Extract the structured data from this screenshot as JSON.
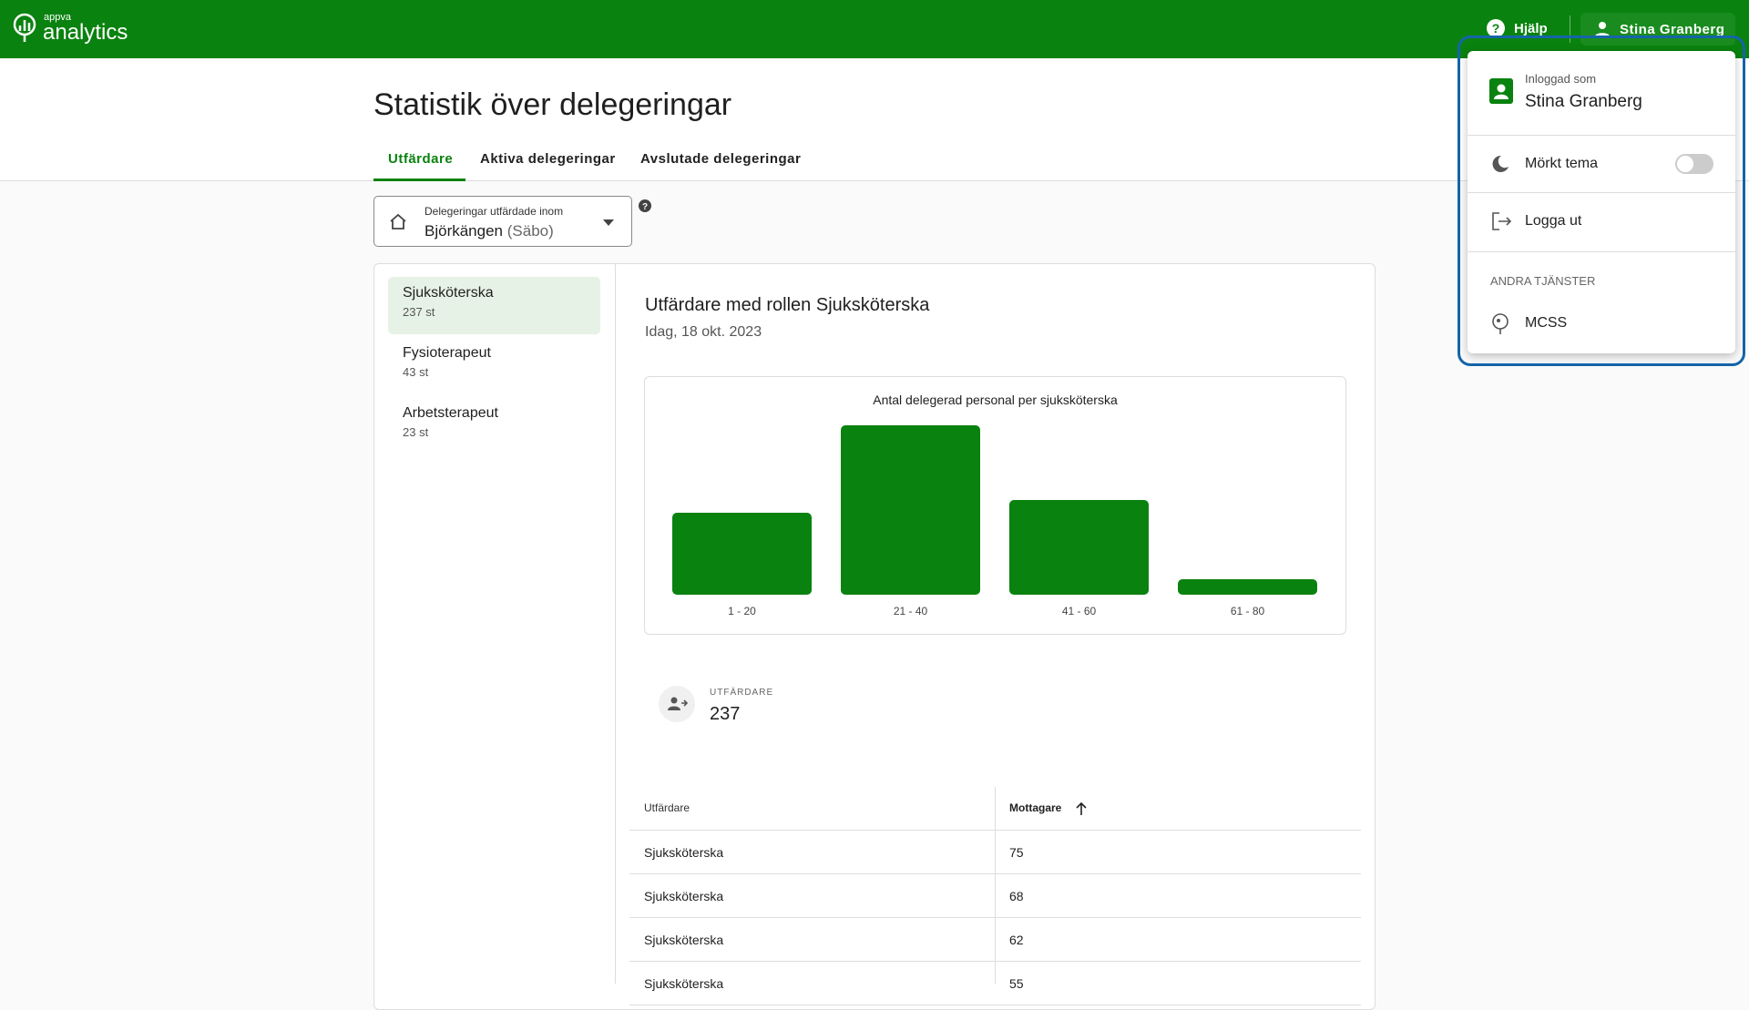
{
  "header": {
    "logo_small": "appva",
    "logo": "analytics",
    "help": "Hjälp",
    "user": "Stina Granberg"
  },
  "page": {
    "title": "Statistik över delegeringar",
    "tabs": [
      "Utfärdare",
      "Aktiva delegeringar",
      "Avslutade delegeringar"
    ]
  },
  "filter": {
    "label": "Delegeringar utfärdade inom",
    "value": "Björkängen",
    "suffix": "(Säbo)"
  },
  "roles": [
    {
      "name": "Sjuksköterska",
      "count": "237 st"
    },
    {
      "name": "Fysioterapeut",
      "count": "43 st"
    },
    {
      "name": "Arbetsterapeut",
      "count": "23 st"
    }
  ],
  "detail": {
    "title": "Utfärdare med rollen Sjuksköterska",
    "date": "Idag, 18 okt. 2023"
  },
  "chart_data": {
    "type": "bar",
    "title": "Antal delegerad personal per sjuksköterska",
    "categories": [
      "1 - 20",
      "21 - 40",
      "41 - 60",
      "61 - 80"
    ],
    "values": [
      54,
      111,
      62,
      10
    ],
    "color": "#0a820f"
  },
  "stat": {
    "label": "UTFÄRDARE",
    "value": 237
  },
  "table": {
    "columns": [
      "Utfärdare",
      "Mottagare"
    ],
    "rows": [
      [
        "Sjuksköterska",
        75
      ],
      [
        "Sjuksköterska",
        68
      ],
      [
        "Sjuksköterska",
        62
      ],
      [
        "Sjuksköterska",
        55
      ]
    ]
  },
  "user_menu": {
    "signed_in_label": "Inloggad som",
    "name": "Stina Granberg",
    "dark_theme": "Mörkt tema",
    "logout": "Logga ut",
    "services_heading": "ANDRA TJÄNSTER",
    "services": [
      "MCSS"
    ]
  }
}
